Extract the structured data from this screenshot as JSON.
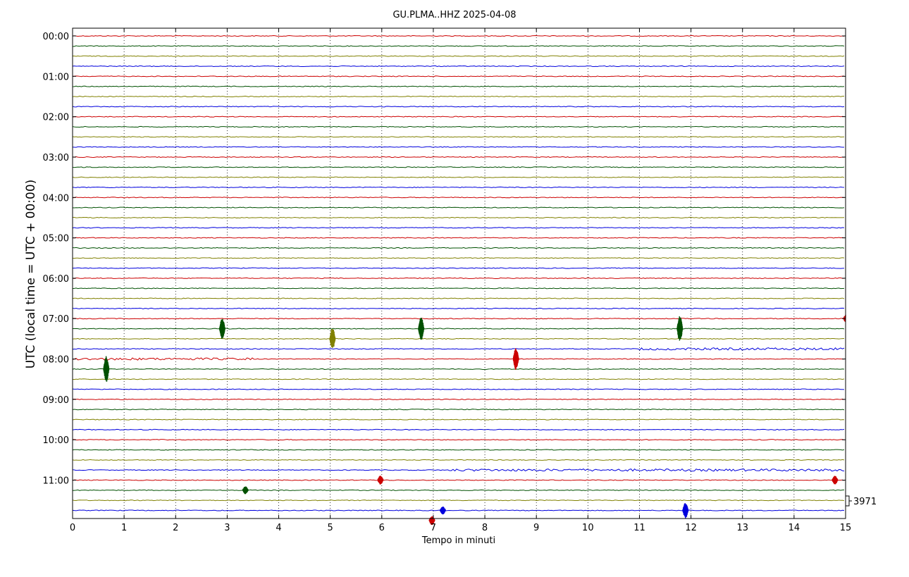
{
  "chart_data": {
    "type": "line",
    "title": "GU.PLMA..HHZ 2025-04-08",
    "xlabel": "Tempo in minuti",
    "ylabel": "UTC (local time = UTC + 00:00)",
    "xlim": [
      0,
      15
    ],
    "x_ticks": [
      "0",
      "1",
      "2",
      "3",
      "4",
      "5",
      "6",
      "7",
      "8",
      "9",
      "10",
      "11",
      "12",
      "13",
      "14",
      "15"
    ],
    "y_ticks": [
      "00:00",
      "01:00",
      "02:00",
      "03:00",
      "04:00",
      "05:00",
      "06:00",
      "07:00",
      "08:00",
      "09:00",
      "10:00",
      "11:00"
    ],
    "trace_minutes": 15,
    "trace_count": 48,
    "trace_colors": [
      "#cc0000",
      "#005000",
      "#808000",
      "#0000dd"
    ],
    "grid": "vertical-dotted",
    "scale_label": "3971",
    "events": [
      {
        "trace": 29,
        "minute": 2.89,
        "amplitude": 2.2
      },
      {
        "trace": 30,
        "minute": 5.03,
        "amplitude": 2.2
      },
      {
        "trace": 29,
        "minute": 6.75,
        "amplitude": 2.3
      },
      {
        "trace": 29,
        "minute": 11.77,
        "amplitude": 2.6
      },
      {
        "trace": 28,
        "minute": 15.0,
        "amplitude": 0.9
      },
      {
        "trace": 33,
        "minute": 0.64,
        "amplitude": 2.6
      },
      {
        "trace": 32,
        "minute": 8.59,
        "amplitude": 2.2
      },
      {
        "trace": 45,
        "minute": 3.34,
        "amplitude": 0.8
      },
      {
        "trace": 44,
        "minute": 5.96,
        "amplitude": 0.9
      },
      {
        "trace": 44,
        "minute": 14.78,
        "amplitude": 0.9
      },
      {
        "trace": 47,
        "minute": 7.17,
        "amplitude": 0.8
      },
      {
        "trace": 47,
        "minute": 11.88,
        "amplitude": 1.6
      },
      {
        "trace": 48,
        "minute": 6.96,
        "amplitude": 0.9
      }
    ],
    "noisy_segments": [
      {
        "trace": 31,
        "start": 11.0,
        "end": 15.0
      },
      {
        "trace": 32,
        "start": 0.0,
        "end": 3.5
      },
      {
        "trace": 43,
        "start": 7.3,
        "end": 15.0
      }
    ]
  }
}
